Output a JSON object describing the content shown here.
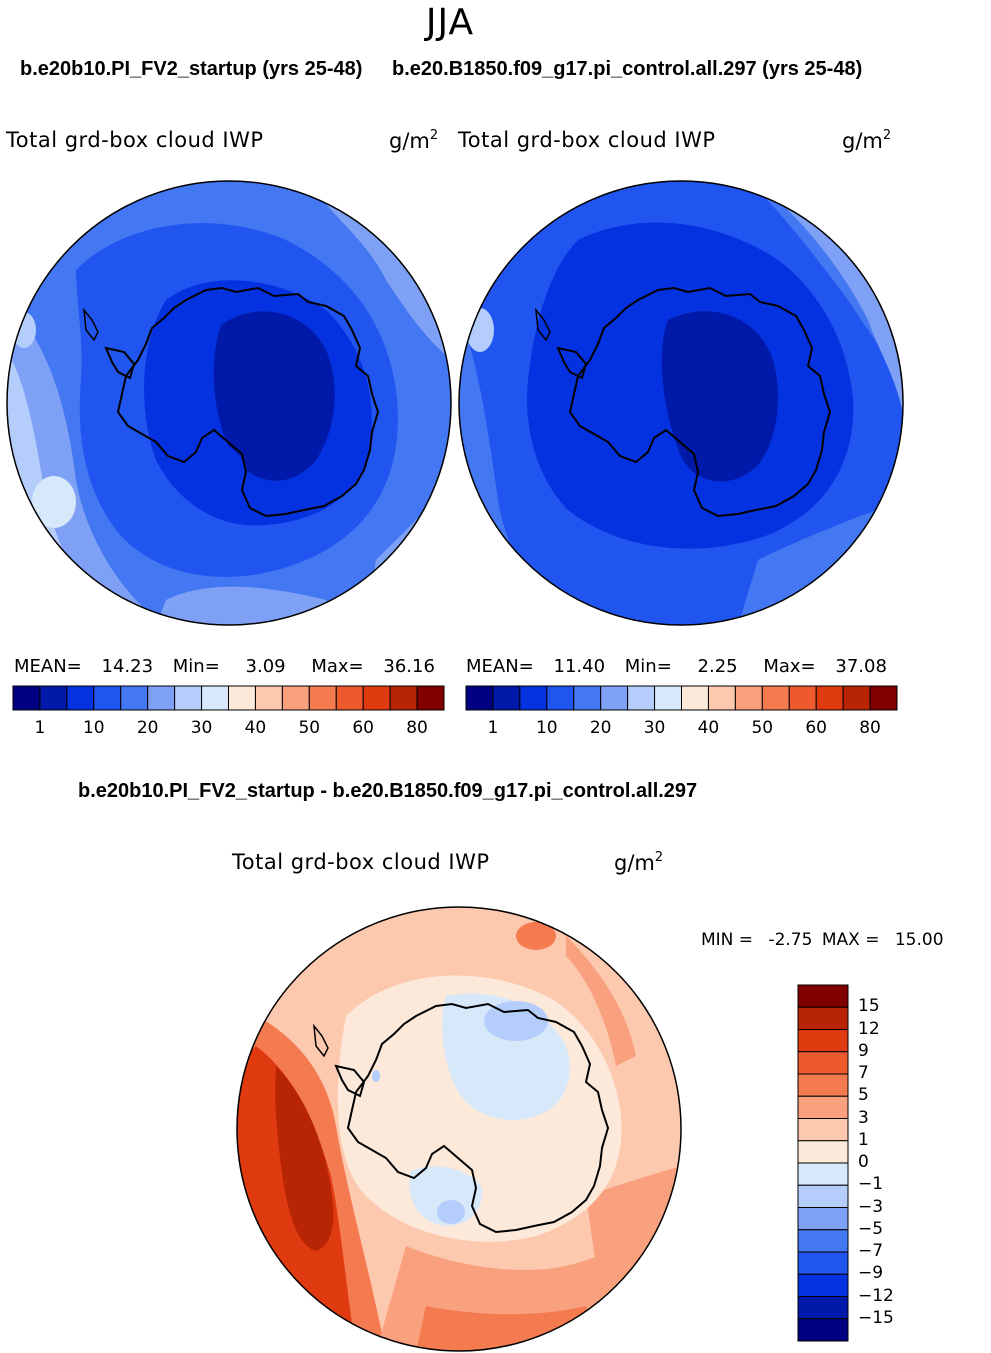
{
  "header": {
    "season": "JJA",
    "case1_title": "b.e20b10.PI_FV2_startup (yrs 25-48)",
    "case2_title": "b.e20.B1850.f09_g17.pi_control.all.297 (yrs 25-48)",
    "diff_title": "b.e20b10.PI_FV2_startup - b.e20.B1850.f09_g17.pi_control.all.297"
  },
  "panels": {
    "left": {
      "var_label": "Total grd-box cloud IWP",
      "units_base": "g/m",
      "units_exp": "2",
      "mean_label": "MEAN=",
      "mean": "14.23",
      "min_label": "Min=",
      "min": "3.09",
      "max_label": "Max=",
      "max": "36.16"
    },
    "right": {
      "var_label": "Total grd-box cloud IWP",
      "units_base": "g/m",
      "units_exp": "2",
      "mean_label": "MEAN=",
      "mean": "11.40",
      "min_label": "Min=",
      "min": "2.25",
      "max_label": "Max=",
      "max": "37.08"
    },
    "diff": {
      "var_label": "Total grd-box cloud IWP",
      "units_base": "g/m",
      "units_exp": "2",
      "min_label": "MIN =",
      "min": "-2.75",
      "max_label": "MAX =",
      "max": "15.00"
    }
  },
  "chart_data": [
    {
      "type": "heatmap",
      "projection": "south polar stereographic",
      "title": "b.e20b10.PI_FV2_startup (yrs 25-48)",
      "variable": "Total grd-box cloud IWP",
      "units": "g/m^2",
      "stats": {
        "mean": 14.23,
        "min": 3.09,
        "max": 36.16
      },
      "colorbar": {
        "orientation": "horizontal",
        "tick_labels": [
          "1",
          "10",
          "20",
          "30",
          "40",
          "50",
          "60",
          "80"
        ],
        "colors": [
          "#000080",
          "#0019a8",
          "#0532e0",
          "#2155f0",
          "#4477f2",
          "#7fa1f5",
          "#b4cdfb",
          "#d8e8fb",
          "#fde9da",
          "#fcc8ae",
          "#f9a07e",
          "#f47a50",
          "#ee5a2e",
          "#df3a10",
          "#b82505",
          "#800000"
        ]
      }
    },
    {
      "type": "heatmap",
      "projection": "south polar stereographic",
      "title": "b.e20.B1850.f09_g17.pi_control.all.297 (yrs 25-48)",
      "variable": "Total grd-box cloud IWP",
      "units": "g/m^2",
      "stats": {
        "mean": 11.4,
        "min": 2.25,
        "max": 37.08
      },
      "colorbar": {
        "orientation": "horizontal",
        "tick_labels": [
          "1",
          "10",
          "20",
          "30",
          "40",
          "50",
          "60",
          "80"
        ],
        "colors": [
          "#000080",
          "#0019a8",
          "#0532e0",
          "#2155f0",
          "#4477f2",
          "#7fa1f5",
          "#b4cdfb",
          "#d8e8fb",
          "#fde9da",
          "#fcc8ae",
          "#f9a07e",
          "#f47a50",
          "#ee5a2e",
          "#df3a10",
          "#b82505",
          "#800000"
        ]
      }
    },
    {
      "type": "heatmap",
      "projection": "south polar stereographic",
      "title": "b.e20b10.PI_FV2_startup - b.e20.B1850.f09_g17.pi_control.all.297",
      "variable": "Total grd-box cloud IWP",
      "units": "g/m^2",
      "stats": {
        "min": -2.75,
        "max": 15.0
      },
      "colorbar": {
        "orientation": "vertical",
        "tick_labels": [
          "15",
          "12",
          "9",
          "7",
          "5",
          "3",
          "1",
          "0",
          "−1",
          "−3",
          "−5",
          "−7",
          "−9",
          "−12",
          "−15"
        ],
        "colors": [
          "#800000",
          "#b82505",
          "#df3a10",
          "#ee5a2e",
          "#f47a50",
          "#f9a07e",
          "#fcc8ae",
          "#fde9da",
          "#d8e8fb",
          "#b4cdfb",
          "#7fa1f5",
          "#4477f2",
          "#2155f0",
          "#0532e0",
          "#0019a8",
          "#000080"
        ]
      }
    }
  ]
}
